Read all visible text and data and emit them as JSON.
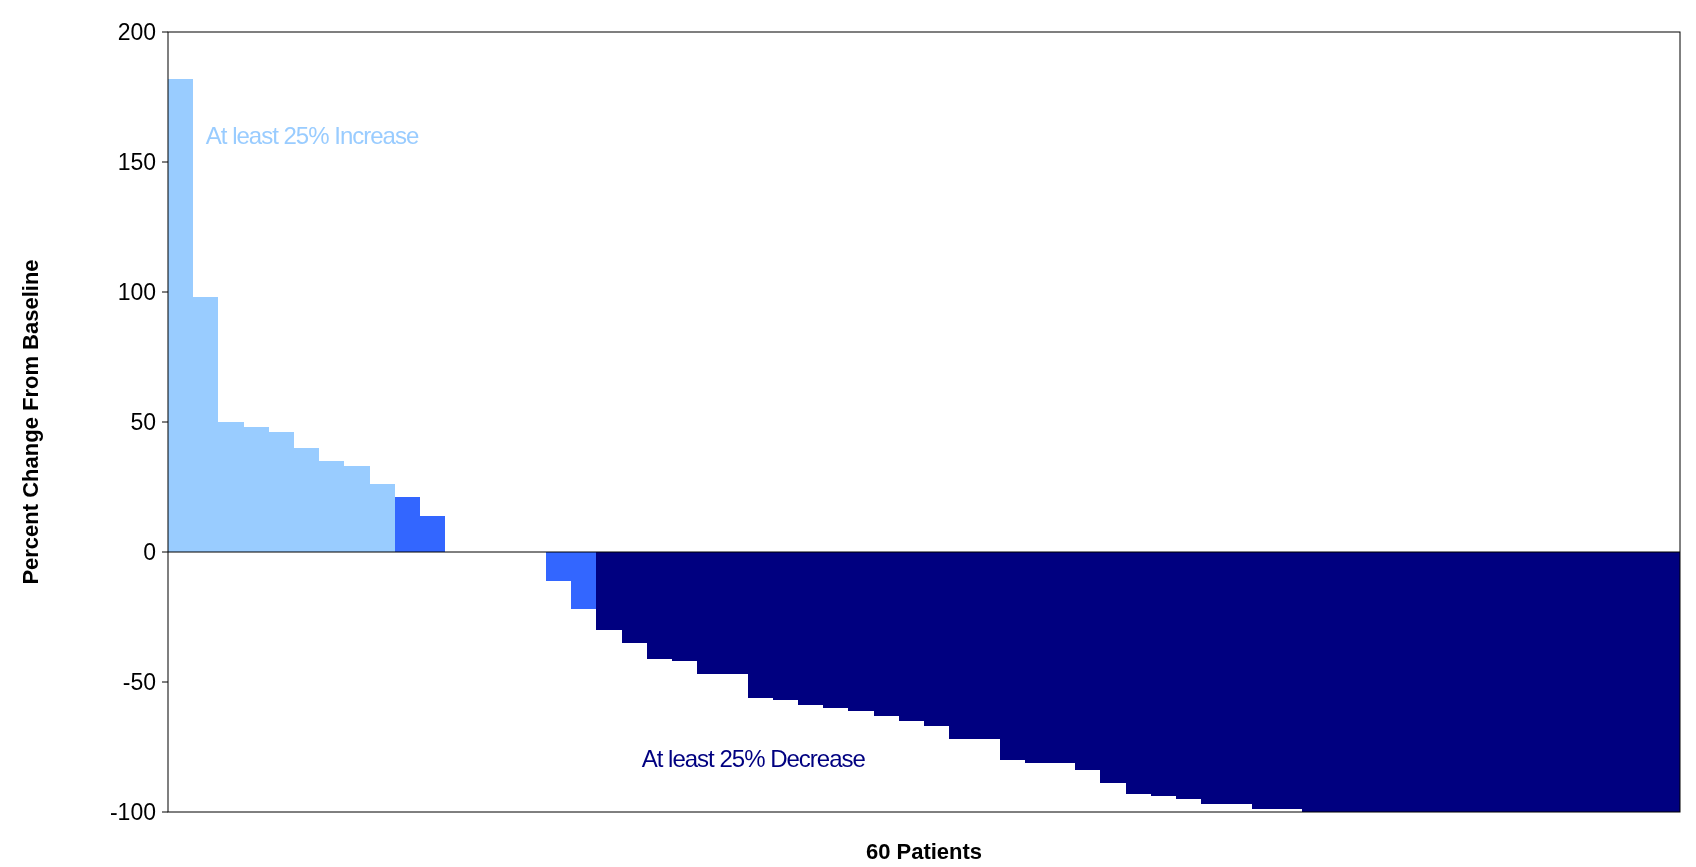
{
  "chart_data": {
    "type": "bar",
    "xlabel": "60 Patients",
    "ylabel": "Percent Change From Baseline",
    "categories": [
      null,
      null,
      null,
      null,
      null,
      null,
      null,
      null,
      null,
      null,
      null,
      null,
      null,
      null,
      null,
      null,
      null,
      null,
      null,
      null,
      null,
      null,
      null,
      null,
      null,
      null,
      null,
      null,
      null,
      null,
      null,
      null,
      null,
      null,
      null,
      null,
      null,
      null,
      null,
      null,
      null,
      null,
      null,
      null,
      null,
      null,
      null,
      null,
      null,
      null,
      null,
      null,
      null,
      null,
      null,
      null,
      null,
      null,
      null,
      null
    ],
    "values": [
      182,
      98,
      50,
      48,
      46,
      40,
      35,
      33,
      26,
      21,
      14,
      0,
      0,
      0,
      0,
      -11,
      -22,
      -30,
      -35,
      -41,
      -42,
      -47,
      -47,
      -56,
      -57,
      -59,
      -60,
      -61,
      -63,
      -65,
      -67,
      -72,
      -72,
      -80,
      -81,
      -81,
      -84,
      -89,
      -93,
      -94,
      -95,
      -97,
      -97,
      -99,
      -99,
      -100,
      -100,
      -100,
      -100,
      -100,
      -100,
      -100,
      -100,
      -100,
      -100,
      -100,
      -100,
      -100,
      -100,
      -100
    ],
    "colors": [
      "#99ccff",
      "#99ccff",
      "#99ccff",
      "#99ccff",
      "#99ccff",
      "#99ccff",
      "#99ccff",
      "#99ccff",
      "#99ccff",
      "#3366ff",
      "#3366ff",
      "#3366ff",
      "#3366ff",
      "#3366ff",
      "#3366ff",
      "#3366ff",
      "#3366ff",
      "#000080",
      "#000080",
      "#000080",
      "#000080",
      "#000080",
      "#000080",
      "#000080",
      "#000080",
      "#000080",
      "#000080",
      "#000080",
      "#000080",
      "#000080",
      "#000080",
      "#000080",
      "#000080",
      "#000080",
      "#000080",
      "#000080",
      "#000080",
      "#000080",
      "#000080",
      "#000080",
      "#000080",
      "#000080",
      "#000080",
      "#000080",
      "#000080",
      "#000080",
      "#000080",
      "#000080",
      "#000080",
      "#000080",
      "#000080",
      "#000080",
      "#000080",
      "#000080",
      "#000080",
      "#000080",
      "#000080",
      "#000080",
      "#000080",
      "#000080"
    ],
    "ylim": [
      -100,
      200
    ],
    "yticks": [
      -100,
      -50,
      0,
      50,
      100,
      150,
      200
    ],
    "tick_labels": "y",
    "annotations": [
      "At least 25% Increase",
      "At least 25% Decrease"
    ]
  }
}
